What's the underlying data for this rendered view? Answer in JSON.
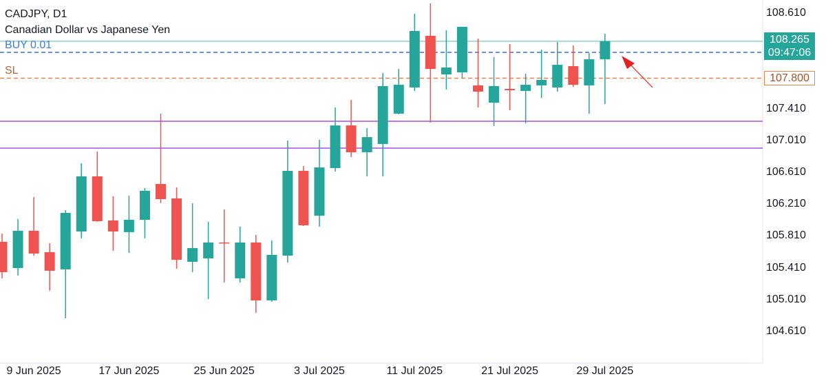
{
  "header": {
    "symbol": "CADJPY, D1",
    "description": "Canadian Dollar vs Japanese Yen"
  },
  "lines": {
    "buy_label": "BUY 0.01",
    "buy_price": 108.125,
    "sl_label": "SL",
    "sl_price": 107.8,
    "sl_badge": "107.800",
    "current_price": 108.265,
    "current_price_label": "108.265",
    "countdown": "09:47:06",
    "horizontal_levels": [
      107.259,
      106.922
    ]
  },
  "colors": {
    "up": "#26a69a",
    "down": "#ef5350",
    "level": "#a64ce6",
    "buy": "#3d6fd6",
    "sl": "#e8834a",
    "current": "#7cc4bc",
    "arrow": "#e52020"
  },
  "chart_data": {
    "type": "candlestick",
    "title": "CADJPY, D1",
    "ylim": [
      104.4,
      108.8
    ],
    "y_ticks": [
      "108.610",
      "107.410",
      "107.010",
      "106.610",
      "106.210",
      "105.810",
      "105.410",
      "105.010",
      "104.610"
    ],
    "y_tick_values": [
      108.61,
      107.41,
      107.01,
      106.61,
      106.21,
      105.81,
      105.41,
      105.01,
      104.61
    ],
    "x_ticks": [
      {
        "label": "9 Jun 2025",
        "index": 2
      },
      {
        "label": "17 Jun 2025",
        "index": 8
      },
      {
        "label": "25 Jun 2025",
        "index": 14
      },
      {
        "label": "3 Jul 2025",
        "index": 20
      },
      {
        "label": "11 Jul 2025",
        "index": 26
      },
      {
        "label": "21 Jul 2025",
        "index": 32
      },
      {
        "label": "29 Jul 2025",
        "index": 38
      }
    ],
    "ohlc": [
      [
        105.744,
        105.848,
        105.285,
        105.363
      ],
      [
        105.415,
        106.03,
        105.32,
        105.883
      ],
      [
        105.883,
        106.307,
        105.571,
        105.597
      ],
      [
        105.614,
        105.727,
        105.13,
        105.381
      ],
      [
        105.398,
        106.143,
        104.783,
        106.108
      ],
      [
        105.874,
        106.731,
        105.788,
        106.567
      ],
      [
        106.567,
        106.878,
        105.995,
        106.004
      ],
      [
        106.013,
        106.316,
        105.631,
        105.874
      ],
      [
        105.866,
        106.324,
        105.605,
        106.021
      ],
      [
        106.021,
        106.42,
        105.788,
        106.385
      ],
      [
        106.471,
        107.355,
        106.229,
        106.281
      ],
      [
        106.29,
        106.428,
        105.406,
        105.519
      ],
      [
        105.493,
        106.229,
        105.363,
        105.666
      ],
      [
        105.536,
        105.995,
        105.026,
        105.736
      ],
      [
        105.736,
        106.151,
        105.233,
        105.727
      ],
      [
        105.285,
        105.935,
        105.233,
        105.736
      ],
      [
        105.736,
        105.831,
        104.853,
        105.008
      ],
      [
        105.008,
        105.762,
        104.991,
        105.58
      ],
      [
        105.571,
        107.017,
        105.484,
        106.636
      ],
      [
        106.636,
        106.697,
        105.943,
        105.952
      ],
      [
        106.073,
        107.026,
        105.935,
        106.679
      ],
      [
        106.671,
        107.432,
        106.627,
        107.207
      ],
      [
        107.207,
        107.528,
        106.809,
        106.87
      ],
      [
        106.87,
        107.173,
        106.567,
        107.06
      ],
      [
        106.974,
        107.865,
        106.567,
        107.701
      ],
      [
        107.355,
        107.917,
        107.346,
        107.718
      ],
      [
        107.684,
        108.61,
        107.64,
        108.394
      ],
      [
        108.333,
        108.74,
        107.242,
        107.917
      ],
      [
        107.848,
        108.402,
        107.658,
        107.935
      ],
      [
        107.874,
        108.446,
        107.805,
        108.446
      ],
      [
        107.71,
        108.298,
        107.432,
        107.632
      ],
      [
        107.493,
        108.065,
        107.199,
        107.701
      ],
      [
        107.666,
        108.229,
        107.398,
        107.649
      ],
      [
        107.64,
        107.857,
        107.233,
        107.718
      ],
      [
        107.71,
        108.16,
        107.554,
        107.779
      ],
      [
        107.684,
        108.255,
        107.632,
        107.969
      ],
      [
        107.952,
        108.212,
        107.692,
        107.718
      ],
      [
        107.71,
        108.116,
        107.355,
        108.039
      ],
      [
        108.039,
        108.359,
        107.476,
        108.264
      ]
    ]
  }
}
